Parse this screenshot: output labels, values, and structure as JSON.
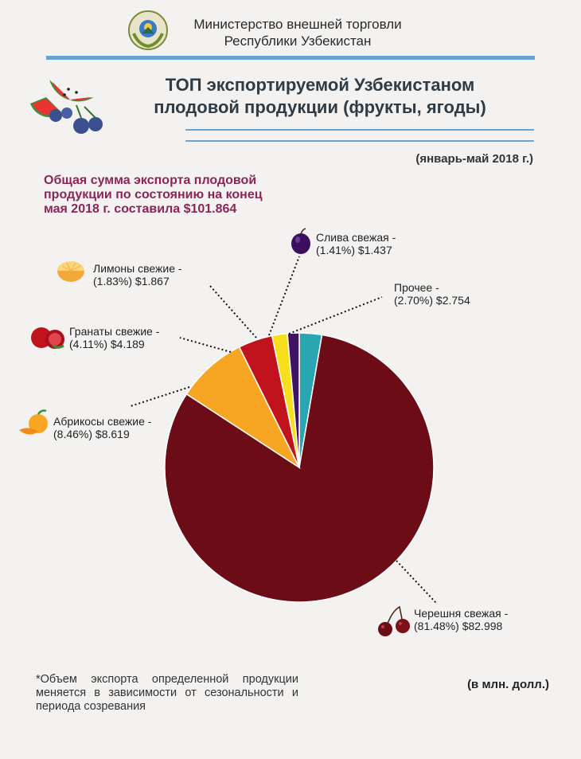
{
  "header": {
    "ministry_line1": "Министерство внешней торговли",
    "ministry_line2": "Республики Узбекистан",
    "title_line1": "ТОП экспортируемой Узбекистаном",
    "title_line2": "плодовой продукции (фрукты, ягоды)",
    "period": "(январь-май 2018 г.)"
  },
  "summary": {
    "line1": "Общая сумма экспорта плодовой",
    "line2": "продукции по состоянию на конец",
    "line3": "мая 2018 г. составила $101.864"
  },
  "footnote": "*Объем экспорта определенной продукции меняется в зависимости от сезональности и периода созревания",
  "units": "(в млн. долл.)",
  "icons": [
    "emblem-icon",
    "watermelon-blueberry-icon",
    "plum-icon",
    "lemon-icon",
    "pomegranate-icon",
    "apricot-icon",
    "cherry-icon"
  ],
  "chart_data": {
    "type": "pie",
    "title": "",
    "total": 101.864,
    "slices": [
      {
        "name": "Прочее -",
        "detail": "(2.70%) $2.754",
        "percent": 2.7,
        "value": 2.754,
        "color": "#2aa6b3"
      },
      {
        "name": "Черешня свежая  -",
        "detail": "(81.48%) $82.998",
        "percent": 81.48,
        "value": 82.998,
        "color": "#6b0c16"
      },
      {
        "name": "Абрикосы свежие -",
        "detail": "(8.46%) $8.619",
        "percent": 8.46,
        "value": 8.619,
        "color": "#f6a623"
      },
      {
        "name": "Гранаты свежие -",
        "detail": "(4.11%) $4.189",
        "percent": 4.11,
        "value": 4.189,
        "color": "#c0131e"
      },
      {
        "name": "Лимоны свежие -",
        "detail": "(1.83%) $1.867",
        "percent": 1.83,
        "value": 1.867,
        "color": "#f7e01b"
      },
      {
        "name": "Слива свежая -",
        "detail": "(1.41%) $1.437",
        "percent": 1.41,
        "value": 1.437,
        "color": "#3f1462"
      }
    ]
  }
}
